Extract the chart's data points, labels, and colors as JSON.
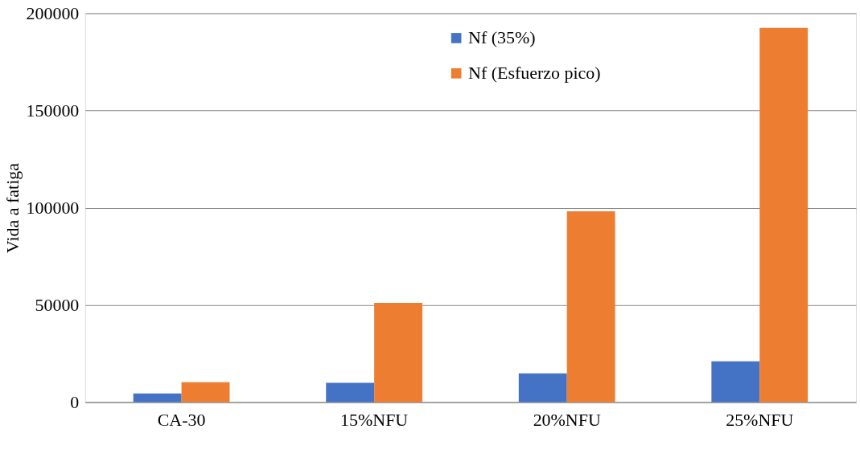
{
  "chart_data": {
    "type": "bar",
    "ylabel": "Vida a fatiga",
    "categories": [
      "CA-30",
      "15%NFU",
      "20%NFU",
      "25%NFU"
    ],
    "series": [
      {
        "name": "Nf (35%)",
        "color": "#4472c4",
        "values": [
          4500,
          9900,
          14800,
          21000
        ]
      },
      {
        "name": "Nf (Esfuerzo pico)",
        "color": "#ed7d31",
        "values": [
          10300,
          51100,
          98100,
          192400
        ]
      }
    ],
    "ylim": [
      0,
      200000
    ],
    "yticks": [
      0,
      50000,
      100000,
      150000,
      200000
    ],
    "grid": "y",
    "legend": "top"
  }
}
